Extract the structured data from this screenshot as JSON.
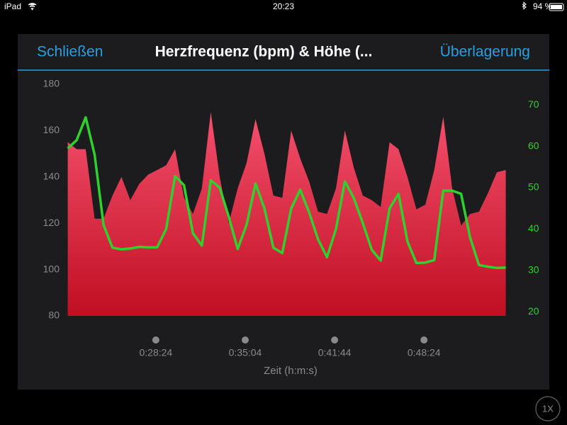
{
  "status_bar": {
    "device": "iPad",
    "time": "20:23",
    "battery": "94 %"
  },
  "header": {
    "close": "Schließen",
    "title": "Herzfrequenz (bpm) & Höhe (...",
    "overlay": "Überlagerung"
  },
  "speed_button": "1X",
  "chart_data": {
    "type": "area-line",
    "x_label": "Zeit (h:m:s)",
    "x": [
      1310,
      1350,
      1390,
      1430,
      1470,
      1510,
      1550,
      1590,
      1630,
      1670,
      1710,
      1750,
      1790,
      1830,
      1870,
      1910,
      1950,
      1990,
      2030,
      2070,
      2110,
      2150,
      2190,
      2230,
      2270,
      2310,
      2350,
      2390,
      2430,
      2470,
      2510,
      2550,
      2590,
      2630,
      2670,
      2710,
      2750,
      2790,
      2830,
      2870,
      2910,
      2950,
      2990,
      3030,
      3070,
      3110,
      3150,
      3190,
      3230,
      3270
    ],
    "xlim": [
      1308,
      3306
    ],
    "xticks": [
      {
        "value": 1704,
        "label": "0:28:24"
      },
      {
        "value": 2104,
        "label": "0:35:04"
      },
      {
        "value": 2504,
        "label": "0:41:44"
      },
      {
        "value": 2904,
        "label": "0:48:24"
      }
    ],
    "ylim": [
      80,
      180
    ],
    "yticks": [
      80,
      100,
      120,
      140,
      160,
      180
    ],
    "y2lim": [
      19,
      75
    ],
    "y2ticks": [
      20,
      30,
      40,
      50,
      60,
      70
    ],
    "grid": false,
    "series": [
      {
        "color": "#e8365a",
        "values": [
          155,
          152,
          152,
          122,
          122,
          132,
          140,
          130,
          137,
          141,
          143,
          145,
          152,
          131,
          124,
          135,
          168,
          140,
          120,
          135,
          146,
          165,
          150,
          132,
          131,
          160,
          148,
          138,
          125,
          124,
          135,
          160,
          144,
          132,
          130,
          127,
          155,
          152,
          140,
          126,
          128,
          143,
          166,
          135,
          119,
          124,
          125,
          133,
          142,
          143
        ]
      },
      {
        "color": "#2ed12e",
        "axis": "y2",
        "values": [
          59.5,
          61.5,
          67,
          58,
          41,
          35.5,
          35.1,
          35.3,
          35.7,
          35.6,
          35.6,
          40,
          52.8,
          50.6,
          39,
          36,
          51.8,
          50,
          43,
          35.2,
          41,
          51,
          45,
          35.5,
          34.2,
          45,
          49.5,
          44,
          37.5,
          33.2,
          40,
          51.5,
          47.5,
          41.5,
          35,
          32.4,
          45,
          48.5,
          37,
          31.8,
          31.9,
          32.5,
          49.3,
          49.3,
          48.5,
          38,
          31.3,
          30.9,
          30.6,
          30.7
        ]
      }
    ]
  }
}
